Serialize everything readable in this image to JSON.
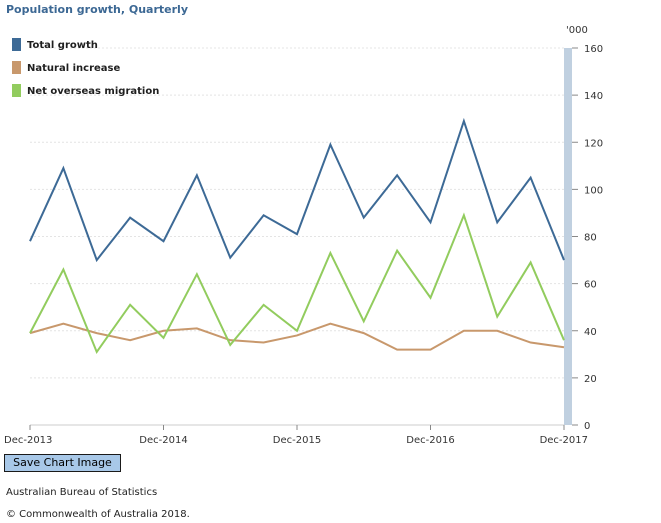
{
  "chart_data": {
    "type": "line",
    "title": "Population growth, Quarterly",
    "unit_label": "'000",
    "ylim": [
      0,
      160
    ],
    "y_ticks": [
      0,
      20,
      40,
      60,
      80,
      100,
      120,
      140,
      160
    ],
    "x_tick_labels": [
      "Dec-2013",
      "Dec-2014",
      "Dec-2015",
      "Dec-2016",
      "Dec-2017"
    ],
    "categories": [
      "Dec-2013",
      "Mar-2014",
      "Jun-2014",
      "Sep-2014",
      "Dec-2014",
      "Mar-2015",
      "Jun-2015",
      "Sep-2015",
      "Dec-2015",
      "Mar-2016",
      "Jun-2016",
      "Sep-2016",
      "Dec-2016",
      "Mar-2017",
      "Jun-2017",
      "Sep-2017",
      "Dec-2017"
    ],
    "series": [
      {
        "name": "Total growth",
        "color": "#3d6a96",
        "values": [
          78,
          109,
          70,
          88,
          78,
          106,
          71,
          89,
          81,
          119,
          88,
          106,
          86,
          129,
          86,
          105,
          70
        ]
      },
      {
        "name": "Natural increase",
        "color": "#c8986c",
        "values": [
          39,
          43,
          39,
          36,
          40,
          41,
          36,
          35,
          38,
          43,
          39,
          32,
          32,
          40,
          40,
          35,
          33
        ]
      },
      {
        "name": "Net overseas migration",
        "color": "#92cc5e",
        "values": [
          39,
          66,
          31,
          51,
          37,
          64,
          34,
          51,
          40,
          73,
          44,
          74,
          54,
          89,
          46,
          69,
          36
        ]
      }
    ],
    "grid": true,
    "legend_position": "top-left"
  },
  "ui": {
    "save_button_label": "Save Chart Image",
    "source": "Australian Bureau of Statistics",
    "copyright": "© Commonwealth of Australia 2018."
  }
}
